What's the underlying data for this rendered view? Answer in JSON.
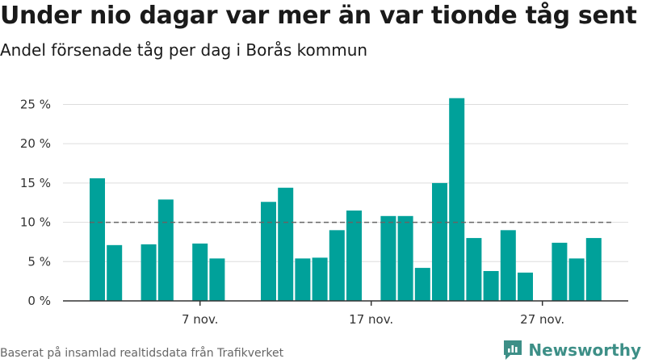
{
  "header": {
    "title": "Under nio dagar var mer än var tionde tåg sent",
    "subtitle": "Andel försenade tåg per dag i Borås kommun"
  },
  "footer": {
    "source": "Baserat på insamlad realtidsdata från Trafikverket",
    "brand": "Newsworthy"
  },
  "colors": {
    "bar": "#00a19a",
    "reference_line": "#666666",
    "grid": "#dddddd",
    "brand": "#3d8f87"
  },
  "chart_data": {
    "type": "bar",
    "title": "Under nio dagar var mer än var tionde tåg sent",
    "subtitle": "Andel försenade tåg per dag i Borås kommun",
    "xlabel": "",
    "ylabel": "",
    "x": [
      "1 nov.",
      "2 nov.",
      "3 nov.",
      "4 nov.",
      "5 nov.",
      "6 nov.",
      "7 nov.",
      "8 nov.",
      "9 nov.",
      "10 nov.",
      "11 nov.",
      "12 nov.",
      "13 nov.",
      "14 nov.",
      "15 nov.",
      "16 nov.",
      "17 nov.",
      "18 nov.",
      "19 nov.",
      "20 nov.",
      "21 nov.",
      "22 nov.",
      "23 nov.",
      "24 nov.",
      "25 nov.",
      "26 nov.",
      "27 nov.",
      "28 nov.",
      "29 nov.",
      "30 nov."
    ],
    "values": [
      15.6,
      7.1,
      null,
      7.2,
      12.9,
      null,
      7.3,
      5.4,
      null,
      null,
      12.6,
      14.4,
      5.4,
      5.5,
      9.0,
      11.5,
      null,
      10.8,
      10.8,
      4.2,
      15.0,
      25.8,
      8.0,
      3.8,
      9.0,
      3.6,
      null,
      7.4,
      5.4,
      8.0
    ],
    "ylim": [
      0,
      27
    ],
    "yticks": [
      0,
      5,
      10,
      15,
      20,
      25
    ],
    "ytick_labels": [
      "0 %",
      "5 %",
      "10 %",
      "15 %",
      "20 %",
      "25 %"
    ],
    "xtick_labels": [
      {
        "index": 6,
        "label": "7 nov."
      },
      {
        "index": 16,
        "label": "17 nov."
      },
      {
        "index": 26,
        "label": "27 nov."
      }
    ],
    "reference_line": {
      "value": 10,
      "style": "dashed"
    },
    "grid": "horizontal",
    "legend": "none"
  }
}
